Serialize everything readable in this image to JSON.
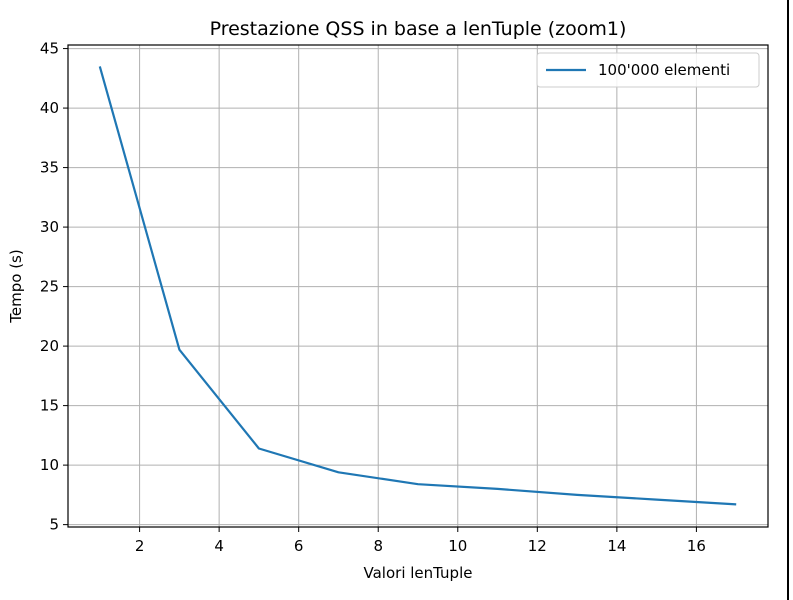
{
  "chart_data": {
    "type": "line",
    "title": "Prestazione QSS in base a lenTuple (zoom1)",
    "xlabel": "Valori lenTuple",
    "ylabel": "Tempo (s)",
    "xlim": [
      0.2,
      17.8
    ],
    "ylim": [
      4.8,
      45.3
    ],
    "x_ticks": [
      2,
      4,
      6,
      8,
      10,
      12,
      14,
      16
    ],
    "y_ticks": [
      5,
      10,
      15,
      20,
      25,
      30,
      35,
      40,
      45
    ],
    "grid": true,
    "legend_position": "top-right",
    "series": [
      {
        "name": "100'000 elementi",
        "color": "#1f77b4",
        "x": [
          1,
          3,
          5,
          7,
          9,
          11,
          13,
          15,
          17
        ],
        "y": [
          43.5,
          19.7,
          11.4,
          9.4,
          8.4,
          8.0,
          7.5,
          7.1,
          6.7
        ]
      }
    ]
  }
}
